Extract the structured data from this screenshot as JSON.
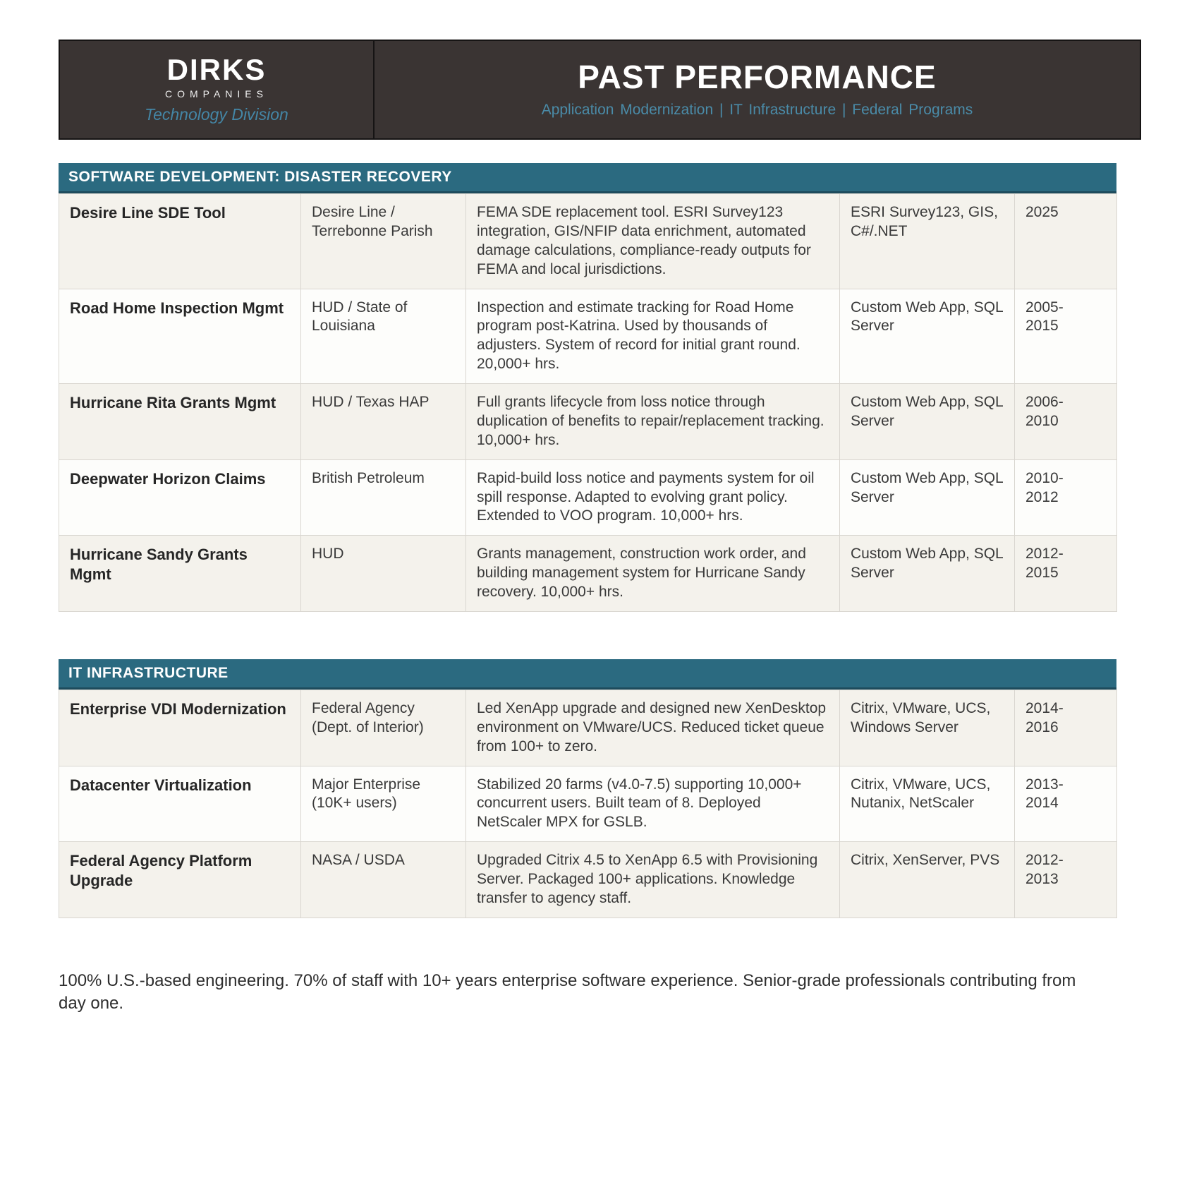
{
  "header": {
    "brand": {
      "name": "DIRKS",
      "subname": "COMPANIES",
      "division": "Technology Division"
    },
    "title": "PAST PERFORMANCE",
    "subtitle": "Application Modernization | IT Infrastructure | Federal Programs"
  },
  "colors": {
    "banner_bg": "#3a3433",
    "banner_border": "#161414",
    "section_bar_teal": "#2b6a80",
    "section_bar_border": "#1d4b5c",
    "accent_text_teal": "#4a8ba8",
    "row_alt_bg": "#f4f2ec",
    "row_bg": "#fdfdfb",
    "cell_border": "#d9d6d0"
  },
  "tables": [
    {
      "title": "SOFTWARE DEVELOPMENT: DISASTER RECOVERY",
      "rows": [
        {
          "project": "Desire Line SDE Tool",
          "client": "Desire Line / Terrebonne Parish",
          "description": "FEMA SDE replacement tool. ESRI Survey123 integration, GIS/NFIP data enrichment, automated damage calculations, compliance-ready outputs for FEMA and local jurisdictions.",
          "tech": "ESRI Survey123, GIS, C#/.NET",
          "years": "2025"
        },
        {
          "project": "Road Home Inspection Mgmt",
          "client": "HUD / State of Louisiana",
          "description": "Inspection and estimate tracking for Road Home program post-Katrina. Used by thousands of adjusters. System of record for initial grant round. 20,000+ hrs.",
          "tech": "Custom Web App, SQL Server",
          "years": "2005-2015"
        },
        {
          "project": "Hurricane Rita Grants Mgmt",
          "client": "HUD / Texas HAP",
          "description": "Full grants lifecycle from loss notice through duplication of benefits to repair/replacement tracking. 10,000+ hrs.",
          "tech": "Custom Web App, SQL Server",
          "years": "2006-2010"
        },
        {
          "project": "Deepwater Horizon Claims",
          "client": "British Petroleum",
          "description": "Rapid-build loss notice and payments system for oil spill response. Adapted to evolving grant policy. Extended to VOO program. 10,000+ hrs.",
          "tech": "Custom Web App, SQL Server",
          "years": "2010-2012"
        },
        {
          "project": "Hurricane Sandy Grants Mgmt",
          "client": "HUD",
          "description": "Grants management, construction work order, and building management system for Hurricane Sandy recovery. 10,000+ hrs.",
          "tech": "Custom Web App, SQL Server",
          "years": "2012-2015"
        }
      ]
    },
    {
      "title": "IT INFRASTRUCTURE",
      "rows": [
        {
          "project": "Enterprise VDI Modernization",
          "client": "Federal Agency (Dept. of Interior)",
          "description": "Led XenApp upgrade and designed new XenDesktop environment on VMware/UCS. Reduced ticket queue from 100+ to zero.",
          "tech": "Citrix, VMware, UCS, Windows Server",
          "years": "2014-2016"
        },
        {
          "project": "Datacenter Virtualization",
          "client": "Major Enterprise (10K+ users)",
          "description": "Stabilized 20 farms (v4.0-7.5) supporting 10,000+ concurrent users. Built team of 8. Deployed NetScaler MPX for GSLB.",
          "tech": "Citrix, VMware, UCS, Nutanix, NetScaler",
          "years": "2013-2014"
        },
        {
          "project": "Federal Agency Platform Upgrade",
          "client": "NASA / USDA",
          "description": "Upgraded Citrix 4.5 to XenApp 6.5 with Provisioning Server. Packaged 100+ applications. Knowledge transfer to agency staff.",
          "tech": "Citrix, XenServer, PVS",
          "years": "2012-2013"
        }
      ]
    }
  ],
  "footer": {
    "note": "100% U.S.-based engineering. 70% of staff with 10+ years enterprise software experience. Senior-grade professionals contributing from day one."
  }
}
